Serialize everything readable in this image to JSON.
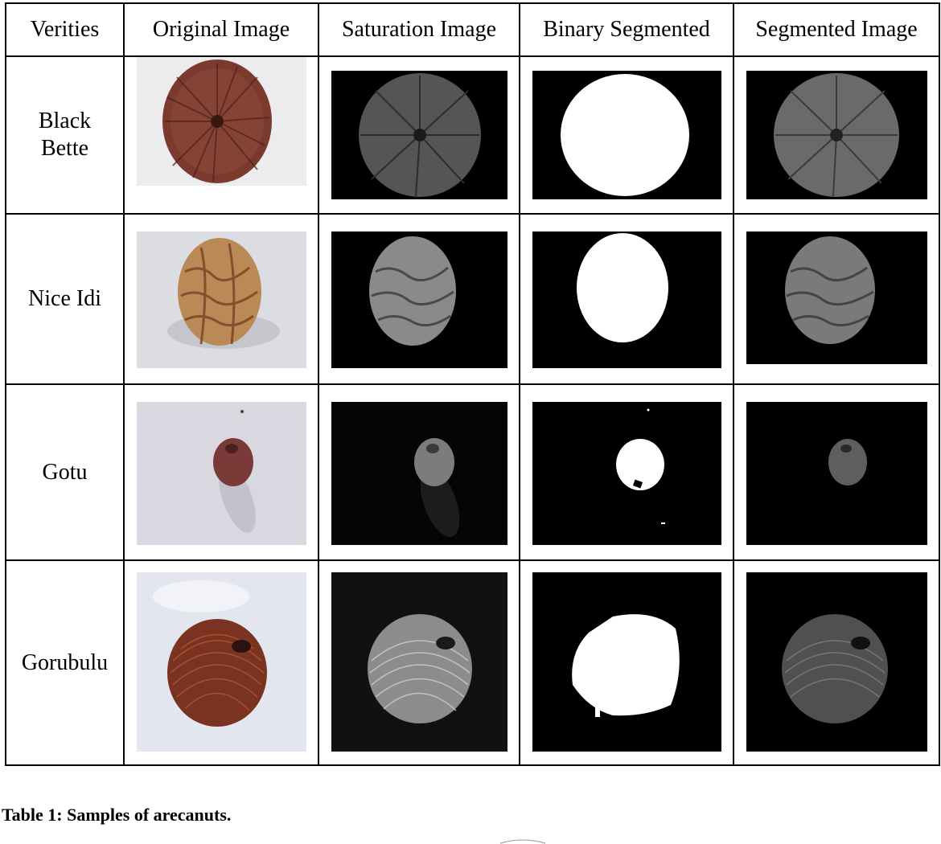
{
  "table": {
    "headers": [
      "Verities",
      "Original Image",
      "Saturation Image",
      "Binary Segmented",
      "Segmented Image"
    ],
    "rows": [
      {
        "variety_line1": "Black",
        "variety_line2": "Bette"
      },
      {
        "variety_line1": "Nice Idi",
        "variety_line2": ""
      },
      {
        "variety_line1": "Gotu",
        "variety_line2": ""
      },
      {
        "variety_line1": "Gorubulu",
        "variety_line2": ""
      }
    ]
  },
  "caption": "Table 1: Samples of arecanuts."
}
